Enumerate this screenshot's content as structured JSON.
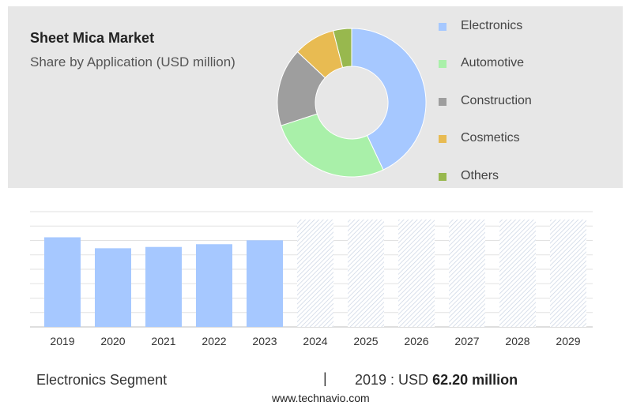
{
  "header": {
    "title": "Sheet Mica Market",
    "subtitle": "Share by Application (USD million)"
  },
  "chart_data": [
    {
      "type": "pie",
      "variant": "donut",
      "title": "Sheet Mica Market",
      "subtitle": "Share by Application (USD million)",
      "legend_position": "right",
      "categories": [
        "Electronics",
        "Automotive",
        "Construction",
        "Cosmetics",
        "Others"
      ],
      "values": [
        43,
        27,
        17,
        9,
        4
      ],
      "colors": [
        "#a6c8ff",
        "#a9f0a9",
        "#9e9e9e",
        "#e8bb52",
        "#98b84e"
      ]
    },
    {
      "type": "bar",
      "categories": [
        "2019",
        "2020",
        "2021",
        "2022",
        "2023",
        "2024",
        "2025",
        "2026",
        "2027",
        "2028",
        "2029"
      ],
      "values": [
        62.2,
        54.6,
        55.5,
        57.4,
        60.1,
        null,
        null,
        null,
        null,
        null,
        null
      ],
      "forecast_categories": [
        "2024",
        "2025",
        "2026",
        "2027",
        "2028",
        "2029"
      ],
      "forecast_style": "hatched",
      "bar_color": "#a6c8ff",
      "grid": true,
      "ylim": [
        0,
        80
      ]
    }
  ],
  "footer": {
    "segment_label": "Electronics Segment",
    "separator": "|",
    "value_prefix": "2019 : USD",
    "value_text": "62.20 million",
    "watermark": "www.technavio.com"
  }
}
